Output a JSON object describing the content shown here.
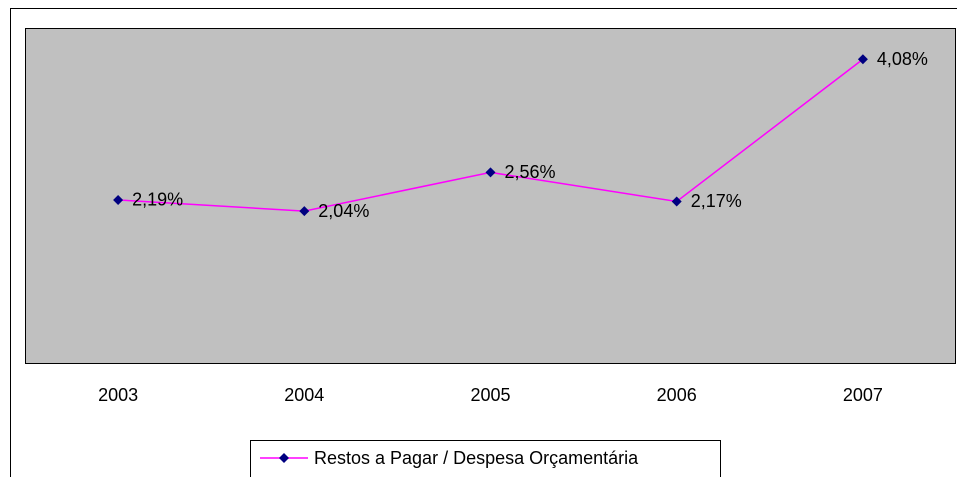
{
  "chart_data": {
    "type": "line",
    "categories": [
      "2003",
      "2004",
      "2005",
      "2006",
      "2007"
    ],
    "series": [
      {
        "name": "Restos a Pagar / Despesa Orçamentária",
        "color": "#ff00ff",
        "marker_color": "#000080",
        "values": [
          2.19,
          2.04,
          2.56,
          2.17,
          4.08
        ],
        "value_labels": [
          "2,19%",
          "2,04%",
          "2,56%",
          "2,17%",
          "4,08%"
        ]
      }
    ],
    "ylim": [
      0,
      4.5
    ],
    "plot_background": "#c0c0c0",
    "legend": "bottom"
  }
}
